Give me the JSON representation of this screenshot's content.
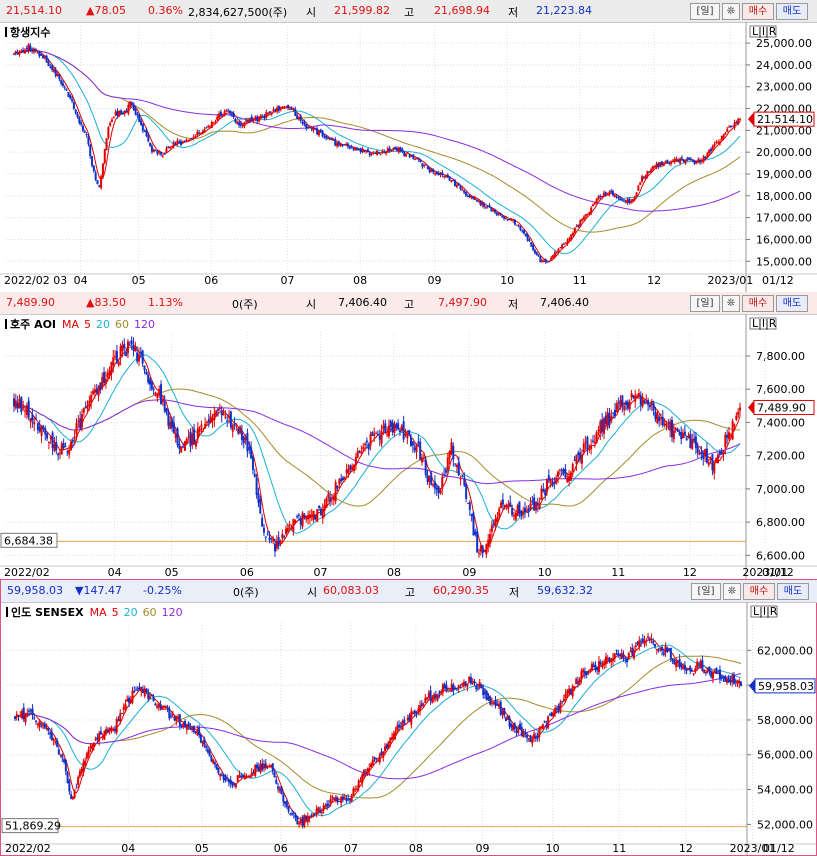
{
  "chart_data": [
    {
      "type": "candlestick",
      "title": "항생지수",
      "header": {
        "price": "21,514.10",
        "change": "▲78.05",
        "change_pct": "0.36%",
        "volume": "2,834,627,500(주)",
        "open_label": "시",
        "open": "21,599.82",
        "high_label": "고",
        "high": "21,698.94",
        "low_label": "저",
        "low": "21,223.84"
      },
      "buttons": [
        "[일]",
        "❊",
        "매수",
        "매도"
      ],
      "scale_tag": "L|I|R",
      "ylim": [
        14600,
        25600
      ],
      "yticks": [
        25000,
        24000,
        23000,
        22000,
        21000,
        20000,
        19000,
        18000,
        17000,
        16000,
        15000
      ],
      "ytick_labels": [
        "25,000.00",
        "24,000.00",
        "23,000.00",
        "22,000.00",
        "21,000.00",
        "20,000.00",
        "19,000.00",
        "18,000.00",
        "17,000.00",
        "16,000.00",
        "15,000.00"
      ],
      "x_labels": [
        "2022/02 03",
        "04",
        "05",
        "06",
        "07",
        "08",
        "09",
        "10",
        "11",
        "12",
        "2023/01"
      ],
      "x_label_days": [
        0,
        40,
        72,
        112,
        154,
        194,
        235,
        275,
        315,
        356,
        398
      ],
      "corner_label": "01/12",
      "last_value_label": "21,514.10",
      "last_value": 21514.1,
      "anchors": [
        [
          0,
          24550
        ],
        [
          8,
          24800
        ],
        [
          16,
          24450
        ],
        [
          24,
          23450
        ],
        [
          30,
          22650
        ],
        [
          36,
          21400
        ],
        [
          40,
          20700
        ],
        [
          44,
          19050
        ],
        [
          47,
          18400
        ],
        [
          52,
          21100
        ],
        [
          56,
          21800
        ],
        [
          60,
          21750
        ],
        [
          64,
          22200
        ],
        [
          70,
          21250
        ],
        [
          76,
          20050
        ],
        [
          82,
          19950
        ],
        [
          88,
          20400
        ],
        [
          96,
          20500
        ],
        [
          104,
          21000
        ],
        [
          112,
          21600
        ],
        [
          118,
          21900
        ],
        [
          124,
          21300
        ],
        [
          130,
          21450
        ],
        [
          136,
          21600
        ],
        [
          142,
          21800
        ],
        [
          148,
          22100
        ],
        [
          154,
          21850
        ],
        [
          160,
          21200
        ],
        [
          166,
          21000
        ],
        [
          172,
          20600
        ],
        [
          180,
          20300
        ],
        [
          188,
          20200
        ],
        [
          196,
          19950
        ],
        [
          204,
          20000
        ],
        [
          210,
          20200
        ],
        [
          216,
          19900
        ],
        [
          222,
          19650
        ],
        [
          230,
          19100
        ],
        [
          238,
          18900
        ],
        [
          246,
          18300
        ],
        [
          254,
          17800
        ],
        [
          262,
          17400
        ],
        [
          268,
          17100
        ],
        [
          274,
          16950
        ],
        [
          280,
          16400
        ],
        [
          286,
          15600
        ],
        [
          290,
          15000
        ],
        [
          294,
          14900
        ],
        [
          298,
          15400
        ],
        [
          304,
          15900
        ],
        [
          310,
          16600
        ],
        [
          316,
          17200
        ],
        [
          322,
          18000
        ],
        [
          328,
          18200
        ],
        [
          334,
          17800
        ],
        [
          340,
          17700
        ],
        [
          346,
          18800
        ],
        [
          352,
          19300
        ],
        [
          358,
          19500
        ],
        [
          364,
          19700
        ],
        [
          370,
          19600
        ],
        [
          376,
          19500
        ],
        [
          382,
          19900
        ],
        [
          388,
          20500
        ],
        [
          394,
          21100
        ],
        [
          400,
          21514
        ]
      ],
      "ma": [
        {
          "name": "MA5",
          "period": 5,
          "color": "#e00000"
        },
        {
          "name": "MA20",
          "period": 20,
          "color": "#1ab0d8"
        },
        {
          "name": "MA60",
          "period": 60,
          "color": "#a68b2b"
        },
        {
          "name": "MA120",
          "period": 120,
          "color": "#8a2be2"
        }
      ]
    },
    {
      "type": "candlestick",
      "title": "호주 AOI",
      "legend": [
        "MA",
        "5",
        "20",
        "60",
        "120"
      ],
      "header": {
        "price": "7,489.90",
        "change": "▲83.50",
        "change_pct": "1.13%",
        "volume": "0(주)",
        "open_label": "시",
        "open": "7,406.40",
        "high_label": "고",
        "high": "7,497.90",
        "low_label": "저",
        "low": "7,406.40"
      },
      "buttons": [
        "[일]",
        "❊",
        "매수",
        "매도"
      ],
      "scale_tag": "L|I|R",
      "ylim": [
        6560,
        7920
      ],
      "yticks": [
        7800,
        7600,
        7400,
        7200,
        7000,
        6800,
        6600
      ],
      "ytick_labels": [
        "7,800.00",
        "7,600.00",
        "7,400.00",
        "7,200.00",
        "7,000.00",
        "6,800.00",
        "6,600.00"
      ],
      "x_labels": [
        "2022/02",
        "04",
        "05",
        "06",
        "07",
        "08",
        "09",
        "10",
        "11",
        "12",
        "2023/01"
      ],
      "x_label_days": [
        0,
        58,
        89,
        130,
        170,
        210,
        251,
        292,
        332,
        371,
        412
      ],
      "corner_label": "01/12",
      "last_value_label": "7,489.90",
      "last_value": 7489.9,
      "reference_line": {
        "label": "6,684.38",
        "value": 6684.38,
        "color": "#e8a040"
      },
      "anchors": [
        [
          0,
          7520
        ],
        [
          6,
          7480
        ],
        [
          12,
          7380
        ],
        [
          18,
          7300
        ],
        [
          24,
          7220
        ],
        [
          30,
          7270
        ],
        [
          36,
          7400
        ],
        [
          42,
          7550
        ],
        [
          50,
          7700
        ],
        [
          56,
          7800
        ],
        [
          62,
          7850
        ],
        [
          68,
          7800
        ],
        [
          74,
          7650
        ],
        [
          80,
          7550
        ],
        [
          84,
          7400
        ],
        [
          90,
          7250
        ],
        [
          96,
          7280
        ],
        [
          102,
          7350
        ],
        [
          108,
          7450
        ],
        [
          114,
          7450
        ],
        [
          120,
          7380
        ],
        [
          126,
          7300
        ],
        [
          130,
          7100
        ],
        [
          134,
          6850
        ],
        [
          138,
          6700
        ],
        [
          142,
          6650
        ],
        [
          148,
          6760
        ],
        [
          154,
          6820
        ],
        [
          160,
          6820
        ],
        [
          166,
          6850
        ],
        [
          172,
          6950
        ],
        [
          178,
          7050
        ],
        [
          184,
          7150
        ],
        [
          190,
          7260
        ],
        [
          196,
          7300
        ],
        [
          202,
          7350
        ],
        [
          208,
          7380
        ],
        [
          214,
          7320
        ],
        [
          220,
          7250
        ],
        [
          226,
          7050
        ],
        [
          232,
          7000
        ],
        [
          238,
          7250
        ],
        [
          244,
          7050
        ],
        [
          248,
          6850
        ],
        [
          252,
          6650
        ],
        [
          256,
          6650
        ],
        [
          260,
          6800
        ],
        [
          266,
          6920
        ],
        [
          272,
          6860
        ],
        [
          278,
          6880
        ],
        [
          284,
          6900
        ],
        [
          290,
          7020
        ],
        [
          296,
          7080
        ],
        [
          302,
          7100
        ],
        [
          308,
          7220
        ],
        [
          314,
          7280
        ],
        [
          320,
          7380
        ],
        [
          326,
          7450
        ],
        [
          332,
          7520
        ],
        [
          338,
          7540
        ],
        [
          344,
          7520
        ],
        [
          350,
          7450
        ],
        [
          356,
          7380
        ],
        [
          362,
          7300
        ],
        [
          368,
          7280
        ],
        [
          374,
          7220
        ],
        [
          380,
          7150
        ],
        [
          384,
          7200
        ],
        [
          388,
          7320
        ],
        [
          392,
          7406
        ],
        [
          395,
          7490
        ]
      ],
      "ma": [
        {
          "name": "MA5",
          "period": 5,
          "color": "#e00000"
        },
        {
          "name": "MA20",
          "period": 20,
          "color": "#1ab0d8"
        },
        {
          "name": "MA60",
          "period": 60,
          "color": "#a68b2b"
        },
        {
          "name": "MA120",
          "period": 120,
          "color": "#8a2be2"
        }
      ]
    },
    {
      "type": "candlestick",
      "title": "인도 SENSEX",
      "legend": [
        "MA",
        "5",
        "20",
        "60",
        "120"
      ],
      "header": {
        "price": "59,958.03",
        "change": "▼147.47",
        "change_pct": "-0.25%",
        "volume": "0(주)",
        "open_label": "시",
        "open": "60,083.03",
        "high_label": "고",
        "high": "60,290.35",
        "low_label": "저",
        "low": "59,632.32"
      },
      "buttons": [
        "[일]",
        "❊",
        "매수",
        "매도"
      ],
      "scale_tag": "L|I|R",
      "ylim": [
        51100,
        63400
      ],
      "yticks": [
        62000,
        60000,
        58000,
        56000,
        54000,
        52000
      ],
      "ytick_labels": [
        "62,000.00",
        "60,000.00",
        "58,000.00",
        "56,000.00",
        "54,000.00",
        "52,000.00"
      ],
      "x_labels": [
        "2022/02",
        "04",
        "05",
        "06",
        "07",
        "08",
        "09",
        "10",
        "11",
        "12",
        "2023/01"
      ],
      "x_label_days": [
        0,
        68,
        110,
        155,
        195,
        232,
        270,
        310,
        348,
        386,
        424
      ],
      "corner_label": "01/12",
      "last_value_label": "59,958.03",
      "last_value": 59958.03,
      "reference_line": {
        "label": "51,869.29",
        "value": 51869.29,
        "color": "#e8a040"
      },
      "anchors": [
        [
          0,
          58200
        ],
        [
          8,
          58400
        ],
        [
          16,
          57600
        ],
        [
          22,
          56800
        ],
        [
          28,
          55600
        ],
        [
          32,
          53500
        ],
        [
          36,
          54500
        ],
        [
          42,
          56500
        ],
        [
          50,
          57200
        ],
        [
          56,
          57400
        ],
        [
          62,
          58600
        ],
        [
          68,
          59800
        ],
        [
          74,
          59600
        ],
        [
          80,
          58900
        ],
        [
          86,
          58500
        ],
        [
          92,
          58000
        ],
        [
          98,
          57600
        ],
        [
          104,
          57200
        ],
        [
          110,
          56200
        ],
        [
          116,
          54800
        ],
        [
          122,
          54400
        ],
        [
          128,
          54600
        ],
        [
          134,
          55000
        ],
        [
          140,
          55300
        ],
        [
          146,
          55200
        ],
        [
          152,
          53600
        ],
        [
          158,
          52600
        ],
        [
          162,
          51900
        ],
        [
          168,
          52700
        ],
        [
          174,
          52800
        ],
        [
          182,
          53500
        ],
        [
          190,
          53500
        ],
        [
          196,
          54500
        ],
        [
          204,
          55500
        ],
        [
          212,
          56600
        ],
        [
          220,
          57800
        ],
        [
          228,
          58400
        ],
        [
          236,
          59300
        ],
        [
          244,
          59800
        ],
        [
          252,
          59900
        ],
        [
          260,
          60300
        ],
        [
          266,
          59800
        ],
        [
          272,
          59000
        ],
        [
          278,
          58400
        ],
        [
          284,
          57600
        ],
        [
          290,
          57200
        ],
        [
          294,
          56800
        ],
        [
          300,
          57400
        ],
        [
          306,
          58200
        ],
        [
          312,
          59000
        ],
        [
          318,
          59800
        ],
        [
          324,
          60700
        ],
        [
          330,
          61000
        ],
        [
          336,
          61300
        ],
        [
          342,
          61900
        ],
        [
          348,
          61400
        ],
        [
          354,
          62100
        ],
        [
          360,
          62700
        ],
        [
          366,
          62300
        ],
        [
          372,
          61900
        ],
        [
          378,
          61300
        ],
        [
          384,
          60700
        ],
        [
          390,
          61200
        ],
        [
          396,
          60700
        ],
        [
          402,
          60500
        ],
        [
          408,
          60300
        ],
        [
          414,
          59958
        ]
      ],
      "ma": [
        {
          "name": "MA5",
          "period": 5,
          "color": "#e00000"
        },
        {
          "name": "MA20",
          "period": 20,
          "color": "#1ab0d8"
        },
        {
          "name": "MA60",
          "period": 60,
          "color": "#a68b2b"
        },
        {
          "name": "MA120",
          "period": 120,
          "color": "#8a2be2"
        }
      ]
    }
  ],
  "colors": {
    "up": "#e00000",
    "down": "#1030c8",
    "grid": "#c8c8c8",
    "price_tag": "#e00000",
    "price_tag_blue": "#1030c8"
  }
}
